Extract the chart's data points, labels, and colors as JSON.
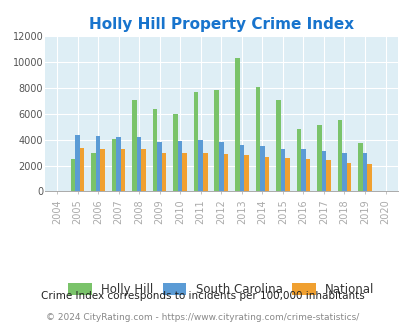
{
  "title": "Holly Hill Property Crime Index",
  "title_color": "#1874CD",
  "years": [
    "2004",
    "2005",
    "2006",
    "2007",
    "2008",
    "2009",
    "2010",
    "2011",
    "2012",
    "2013",
    "2014",
    "2015",
    "2016",
    "2017",
    "2018",
    "2019",
    "2020"
  ],
  "holly_hill": [
    0,
    2500,
    2950,
    4050,
    7050,
    6350,
    6000,
    7700,
    7850,
    10300,
    8050,
    7050,
    4800,
    5150,
    5550,
    3750,
    0
  ],
  "south_carolina": [
    0,
    4400,
    4250,
    4200,
    4200,
    3850,
    3900,
    4000,
    3800,
    3600,
    3500,
    3300,
    3250,
    3150,
    3000,
    2950,
    0
  ],
  "national": [
    0,
    3350,
    3300,
    3250,
    3250,
    3000,
    2950,
    2950,
    2900,
    2800,
    2700,
    2600,
    2500,
    2400,
    2200,
    2100,
    0
  ],
  "holly_hill_color": "#7ac36a",
  "south_carolina_color": "#5b9bd5",
  "national_color": "#f0a030",
  "bg_color": "#deeef5",
  "ylim": [
    0,
    12000
  ],
  "yticks": [
    0,
    2000,
    4000,
    6000,
    8000,
    10000,
    12000
  ],
  "bar_width": 0.22,
  "legend_labels": [
    "Holly Hill",
    "South Carolina",
    "National"
  ],
  "footnote1": "Crime Index corresponds to incidents per 100,000 inhabitants",
  "footnote2": "© 2024 CityRating.com - https://www.cityrating.com/crime-statistics/",
  "footnote_color1": "#222222",
  "footnote_color2": "#888888"
}
